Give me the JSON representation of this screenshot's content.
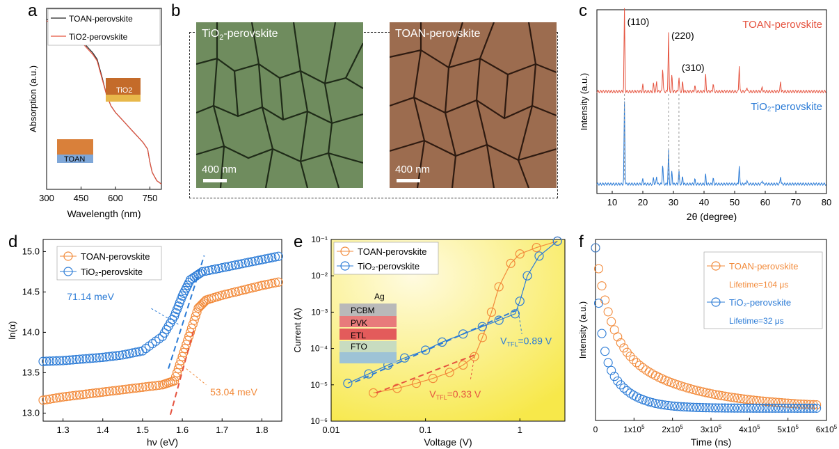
{
  "labels": {
    "a": "a",
    "b": "b",
    "c": "c",
    "d": "d",
    "e": "e",
    "f": "f"
  },
  "sem": {
    "left_title": "TiO",
    "left_title_sub": "2",
    "left_title_rest": "-perovskite",
    "right_title": "TOAN-perovskite",
    "scale_left": "400 nm",
    "scale_right": "400 nm"
  },
  "colors": {
    "toan": "#e5533f",
    "tio2": "#2b7bd6",
    "toan_orange": "#f28a3a",
    "sem_green": "#6f8c5e",
    "sem_brown": "#9c6c4f"
  },
  "chart_data": [
    {
      "panel": "a",
      "type": "line",
      "xlabel": "Wavelength (nm)",
      "ylabel": "Absorption (a.u.)",
      "xlim": [
        300,
        800
      ],
      "xticks": [
        300,
        450,
        600,
        750
      ],
      "legend": [
        "TOAN-perovskite",
        "TiO2-perovskite"
      ],
      "legend_placement": "top",
      "inset_labels": [
        "TiO2",
        "TOAN"
      ],
      "series": [
        {
          "name": "TOAN-perovskite",
          "x": [
            300,
            320,
            340,
            360,
            380,
            400,
            420,
            440,
            450,
            460,
            480,
            500,
            520,
            540,
            560,
            580,
            600,
            620,
            640,
            660,
            680,
            700,
            720,
            740,
            750,
            760,
            780,
            800
          ],
          "y": [
            1.0,
            0.99,
            0.98,
            0.97,
            0.96,
            0.95,
            0.93,
            0.9,
            0.88,
            0.86,
            0.83,
            0.8,
            0.76,
            0.66,
            0.55,
            0.48,
            0.44,
            0.41,
            0.38,
            0.35,
            0.32,
            0.29,
            0.26,
            0.22,
            0.14,
            0.08,
            0.03,
            0.01
          ]
        },
        {
          "name": "TiO2-perovskite",
          "x": [
            300,
            320,
            340,
            360,
            380,
            400,
            420,
            440,
            450,
            460,
            480,
            500,
            520,
            540,
            560,
            580,
            600,
            620,
            640,
            660,
            680,
            700,
            720,
            740,
            750,
            760,
            780,
            800
          ],
          "y": [
            0.99,
            0.98,
            0.97,
            0.96,
            0.95,
            0.94,
            0.92,
            0.89,
            0.87,
            0.85,
            0.82,
            0.79,
            0.75,
            0.65,
            0.55,
            0.48,
            0.44,
            0.41,
            0.38,
            0.35,
            0.32,
            0.29,
            0.26,
            0.22,
            0.14,
            0.08,
            0.03,
            0.01
          ]
        }
      ]
    },
    {
      "panel": "c",
      "type": "line",
      "xlabel": "2θ (degree)",
      "ylabel": "Intensity (a.u.)",
      "xlim": [
        5,
        80
      ],
      "xticks": [
        10,
        20,
        30,
        40,
        50,
        60,
        70,
        80
      ],
      "peak_labels": [
        "(110)",
        "(220)",
        "(310)"
      ],
      "series": [
        {
          "name": "TOAN-perovskite",
          "peaks": [
            [
              14.0,
              1.0
            ],
            [
              20,
              0.08
            ],
            [
              23.5,
              0.1
            ],
            [
              24.5,
              0.12
            ],
            [
              26.5,
              0.3
            ],
            [
              28.4,
              0.72
            ],
            [
              29.5,
              0.2
            ],
            [
              31.8,
              0.18
            ],
            [
              33,
              0.12
            ],
            [
              37,
              0.08
            ],
            [
              40.5,
              0.22
            ],
            [
              43,
              0.1
            ],
            [
              51.5,
              0.32
            ],
            [
              54,
              0.06
            ],
            [
              59,
              0.06
            ],
            [
              65,
              0.12
            ]
          ]
        },
        {
          "name": "TiO2-perovskite",
          "peaks": [
            [
              14.0,
              1.0
            ],
            [
              20,
              0.06
            ],
            [
              23.5,
              0.08
            ],
            [
              24.5,
              0.1
            ],
            [
              26.5,
              0.25
            ],
            [
              28.4,
              0.42
            ],
            [
              29.5,
              0.16
            ],
            [
              31.8,
              0.16
            ],
            [
              33,
              0.1
            ],
            [
              37,
              0.06
            ],
            [
              40.5,
              0.12
            ],
            [
              43,
              0.07
            ],
            [
              51.5,
              0.22
            ],
            [
              54,
              0.05
            ],
            [
              59,
              0.05
            ],
            [
              65,
              0.1
            ]
          ]
        }
      ]
    },
    {
      "panel": "d",
      "type": "scatter",
      "xlabel": "hν (eV)",
      "ylabel": "ln(α)",
      "xlim": [
        1.25,
        1.85
      ],
      "ylim": [
        12.9,
        15.15
      ],
      "xticks": [
        1.3,
        1.4,
        1.5,
        1.6,
        1.7,
        1.8
      ],
      "yticks": [
        13.0,
        13.5,
        14.0,
        14.5,
        15.0
      ],
      "annotations": [
        "71.14 meV",
        "53.04 meV"
      ],
      "series": [
        {
          "name": "TOAN-perovskite",
          "points": [
            [
              1.25,
              13.16
            ],
            [
              1.3,
              13.2
            ],
            [
              1.35,
              13.23
            ],
            [
              1.4,
              13.26
            ],
            [
              1.45,
              13.29
            ],
            [
              1.5,
              13.32
            ],
            [
              1.55,
              13.35
            ],
            [
              1.58,
              13.4
            ],
            [
              1.6,
              13.7
            ],
            [
              1.62,
              14.0
            ],
            [
              1.64,
              14.3
            ],
            [
              1.66,
              14.4
            ],
            [
              1.7,
              14.46
            ],
            [
              1.75,
              14.52
            ],
            [
              1.8,
              14.58
            ],
            [
              1.85,
              14.63
            ]
          ]
        },
        {
          "name": "TiO2-perovskite",
          "points": [
            [
              1.25,
              13.64
            ],
            [
              1.3,
              13.65
            ],
            [
              1.35,
              13.67
            ],
            [
              1.4,
              13.69
            ],
            [
              1.45,
              13.72
            ],
            [
              1.5,
              13.77
            ],
            [
              1.55,
              13.95
            ],
            [
              1.58,
              14.2
            ],
            [
              1.6,
              14.45
            ],
            [
              1.62,
              14.65
            ],
            [
              1.65,
              14.75
            ],
            [
              1.7,
              14.8
            ],
            [
              1.75,
              14.85
            ],
            [
              1.8,
              14.9
            ],
            [
              1.85,
              14.95
            ]
          ]
        }
      ]
    },
    {
      "panel": "e",
      "type": "scatter",
      "xlabel": "Voltage (V)",
      "ylabel": "Current (A)",
      "xscale": "log",
      "yscale": "log",
      "xlim": [
        0.01,
        3
      ],
      "ylim": [
        1e-06,
        0.1
      ],
      "xtick_labels": [
        "0.01",
        "0.1",
        "1"
      ],
      "ytick_labels": [
        "10⁻⁶",
        "10⁻⁵",
        "10⁻⁴",
        "10⁻³",
        "10⁻²",
        "10⁻¹"
      ],
      "annotations": [
        "V",
        "TFL",
        "=0.89 V",
        "=0.33 V"
      ],
      "inset_layers": [
        "Ag",
        "PCBM",
        "PVK",
        "ETL",
        "FTO"
      ],
      "series": [
        {
          "name": "TOAN-perovskite",
          "points": [
            [
              0.028,
              6e-06
            ],
            [
              0.05,
              8e-06
            ],
            [
              0.08,
              1.1e-05
            ],
            [
              0.12,
              1.5e-05
            ],
            [
              0.18,
              2.2e-05
            ],
            [
              0.25,
              3.5e-05
            ],
            [
              0.33,
              6e-05
            ],
            [
              0.4,
              0.0002
            ],
            [
              0.5,
              0.001
            ],
            [
              0.6,
              0.005
            ],
            [
              0.8,
              0.022
            ],
            [
              1.0,
              0.04
            ],
            [
              1.5,
              0.06
            ],
            [
              2.5,
              0.09
            ]
          ]
        },
        {
          "name": "TiO2-perovskite",
          "points": [
            [
              0.015,
              1.1e-05
            ],
            [
              0.025,
              2e-05
            ],
            [
              0.04,
              3.5e-05
            ],
            [
              0.06,
              5.5e-05
            ],
            [
              0.1,
              9e-05
            ],
            [
              0.15,
              0.00015
            ],
            [
              0.25,
              0.00025
            ],
            [
              0.4,
              0.0004
            ],
            [
              0.6,
              0.0006
            ],
            [
              0.89,
              0.0009
            ],
            [
              1.0,
              0.002
            ],
            [
              1.2,
              0.01
            ],
            [
              1.6,
              0.035
            ],
            [
              2.5,
              0.09
            ]
          ]
        }
      ]
    },
    {
      "panel": "f",
      "type": "scatter",
      "xlabel": "Time (ns)",
      "ylabel": "Intensity (a.u.)",
      "xlim": [
        0,
        600000
      ],
      "xtick_labels": [
        "0",
        "1x10",
        "2x10",
        "3x10",
        "4x10",
        "5x10",
        "6x10"
      ],
      "tick_exp": "5",
      "legend_lifetimes": [
        "Lifetime=104 μs",
        "Lifetime=32 μs"
      ],
      "series": [
        {
          "name": "TOAN-perovskite",
          "lifetime_us": 104
        },
        {
          "name": "TiO2-perovskite",
          "lifetime_us": 32
        }
      ]
    }
  ]
}
